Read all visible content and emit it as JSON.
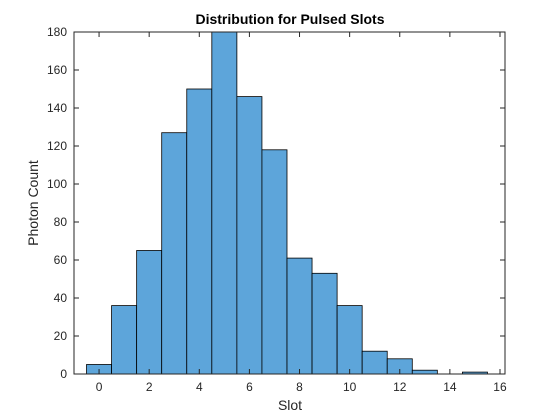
{
  "chart_data": {
    "type": "bar",
    "title": "Distribution for Pulsed Slots",
    "xlabel": "Slot",
    "ylabel": "Photon Count",
    "xlim": [
      -1,
      16.2
    ],
    "ylim": [
      0,
      180
    ],
    "xticks": [
      0,
      2,
      4,
      6,
      8,
      10,
      12,
      14,
      16
    ],
    "yticks": [
      0,
      20,
      40,
      60,
      80,
      100,
      120,
      140,
      160,
      180
    ],
    "bin_width": 1,
    "bins": [
      {
        "left": -0.5,
        "count": 5
      },
      {
        "left": 0.5,
        "count": 36
      },
      {
        "left": 1.5,
        "count": 65
      },
      {
        "left": 2.5,
        "count": 127
      },
      {
        "left": 3.5,
        "count": 150
      },
      {
        "left": 4.5,
        "count": 180
      },
      {
        "left": 5.5,
        "count": 146
      },
      {
        "left": 6.5,
        "count": 118
      },
      {
        "left": 7.5,
        "count": 61
      },
      {
        "left": 8.5,
        "count": 53
      },
      {
        "left": 9.5,
        "count": 36
      },
      {
        "left": 10.5,
        "count": 12
      },
      {
        "left": 11.5,
        "count": 8
      },
      {
        "left": 12.5,
        "count": 2
      },
      {
        "left": 13.5,
        "count": 0
      },
      {
        "left": 14.5,
        "count": 1
      }
    ],
    "grid": false,
    "legend": "none",
    "bar_color": "#5DA5DA",
    "edge_color": "#000000"
  }
}
